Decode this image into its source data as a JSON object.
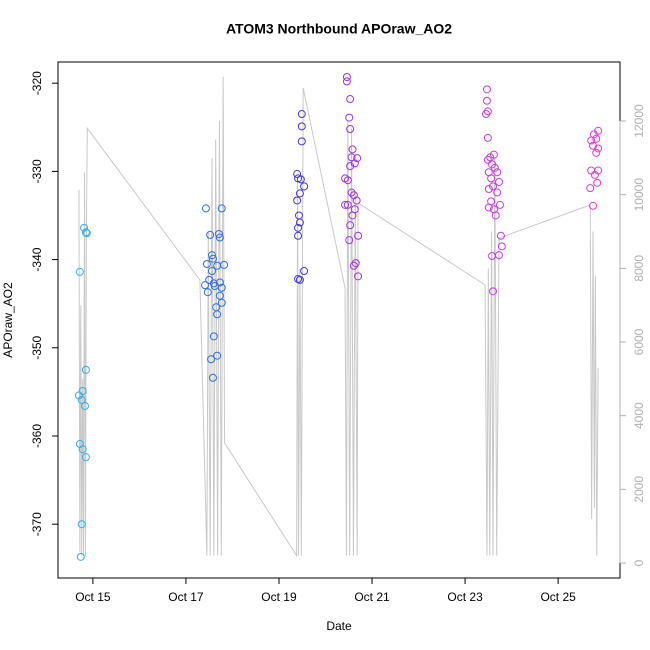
{
  "chart_data": {
    "type": "scatter",
    "title": "ATOM3 Northbound APOraw_AO2",
    "x_label": "Date",
    "y_label": "APOraw_AO2",
    "xlim": [
      14.25,
      26.33
    ],
    "xticks": [
      {
        "value": 15,
        "label": "Oct 15"
      },
      {
        "value": 17,
        "label": "Oct 17"
      },
      {
        "value": 19,
        "label": "Oct 19"
      },
      {
        "value": 21,
        "label": "Oct 21"
      },
      {
        "value": 23,
        "label": "Oct 23"
      },
      {
        "value": 25,
        "label": "Oct 25"
      }
    ],
    "ylim": [
      -376.1,
      -317.6
    ],
    "yticks": [
      -370,
      -360,
      -350,
      -340,
      -330,
      -320
    ],
    "y2lim": [
      -407,
      13602
    ],
    "y2ticks": [
      0,
      2000,
      4000,
      6000,
      8000,
      10000,
      12000
    ],
    "y2_color": "#b0b0b0",
    "series": [
      {
        "type": "scatter",
        "color": "#33aef0",
        "x": [
          14.72,
          14.81,
          14.85,
          14.87,
          14.7,
          14.78,
          14.76,
          14.83,
          14.85,
          14.72,
          14.78,
          14.85,
          14.76,
          14.74
        ],
        "values": [
          -341.4,
          -336.4,
          -336.9,
          -337.0,
          -355.4,
          -354.9,
          -355.9,
          -356.6,
          -352.5,
          -360.9,
          -361.5,
          -362.4,
          -370.0,
          -373.7
        ]
      },
      {
        "type": "scatter",
        "color": "#2f6fe6",
        "x": [
          17.43,
          17.77,
          17.52,
          17.71,
          17.73,
          17.56,
          17.58,
          17.45,
          17.82,
          17.67,
          17.56,
          17.5,
          17.6,
          17.73,
          17.41,
          17.62,
          17.77,
          17.47,
          17.73,
          17.77,
          17.65,
          17.67,
          17.6,
          17.67,
          17.54,
          17.58
        ],
        "values": [
          -334.2,
          -334.2,
          -337.2,
          -337.1,
          -337.5,
          -339.5,
          -339.9,
          -340.5,
          -340.6,
          -340.7,
          -341.3,
          -342.3,
          -342.7,
          -342.6,
          -342.9,
          -343.0,
          -343.2,
          -343.7,
          -344.1,
          -344.9,
          -345.4,
          -346.2,
          -348.7,
          -350.9,
          -351.3,
          -353.4
        ]
      },
      {
        "type": "scatter",
        "color": "#4a36e0",
        "x": [
          19.49,
          19.49,
          19.49,
          19.39,
          19.41,
          19.47,
          19.54,
          19.45,
          19.39,
          19.43,
          19.45,
          19.41,
          19.41,
          19.54,
          19.45,
          19.41
        ],
        "values": [
          -323.5,
          -324.9,
          -326.6,
          -330.3,
          -330.8,
          -330.9,
          -331.7,
          -332.5,
          -333.3,
          -335.0,
          -335.8,
          -336.4,
          -337.3,
          -341.3,
          -342.3,
          -342.2
        ]
      },
      {
        "type": "scatter",
        "color": "#a032e8",
        "x": [
          20.46,
          20.46,
          20.53,
          20.51,
          20.53,
          20.58,
          20.56,
          20.68,
          20.63,
          20.53,
          20.42,
          20.48,
          20.56,
          20.61,
          20.67,
          20.42,
          20.48,
          20.63,
          20.58,
          20.53,
          20.7,
          20.51,
          20.65,
          20.61,
          20.7
        ],
        "values": [
          -319.3,
          -319.8,
          -321.8,
          -323.9,
          -325.2,
          -327.5,
          -328.4,
          -328.5,
          -329.1,
          -329.4,
          -330.8,
          -331.0,
          -332.4,
          -332.7,
          -333.3,
          -333.8,
          -333.8,
          -334.3,
          -335.0,
          -336.1,
          -337.3,
          -337.8,
          -340.4,
          -340.7,
          -341.9
        ]
      },
      {
        "type": "scatter",
        "color": "#c83ce8",
        "x": [
          23.47,
          23.47,
          23.49,
          23.45,
          23.49,
          23.54,
          23.62,
          23.49,
          23.58,
          23.64,
          23.51,
          23.69,
          23.56,
          23.73,
          23.6,
          23.51,
          23.69,
          23.56,
          23.75,
          23.62,
          23.66,
          23.51,
          23.77,
          23.79,
          23.58,
          23.73,
          23.6
        ],
        "values": [
          -320.7,
          -322.0,
          -323.2,
          -323.5,
          -326.2,
          -328.4,
          -328.1,
          -328.7,
          -329.2,
          -329.6,
          -330.1,
          -330.1,
          -330.8,
          -331.2,
          -331.7,
          -332.0,
          -332.4,
          -333.4,
          -333.8,
          -334.3,
          -335.0,
          -334.1,
          -337.3,
          -338.5,
          -339.6,
          -339.5,
          -343.6
        ]
      },
      {
        "type": "scatter",
        "color": "#e03cd8",
        "x": [
          25.86,
          25.77,
          25.71,
          25.82,
          25.75,
          25.86,
          25.82,
          25.71,
          25.86,
          25.79,
          25.84,
          25.69,
          25.75
        ],
        "values": [
          -325.4,
          -325.8,
          -326.5,
          -326.3,
          -327.1,
          -327.4,
          -327.9,
          -329.9,
          -329.9,
          -330.4,
          -331.3,
          -331.9,
          -333.9
        ]
      },
      {
        "type": "line",
        "axis": "y2",
        "color": "#c8c8c8",
        "x": [
          14.7,
          14.72,
          14.74,
          14.76,
          14.78,
          14.8,
          14.82,
          14.84,
          14.86,
          14.88,
          17.3,
          17.45,
          17.48,
          17.52,
          17.56,
          17.6,
          17.64,
          17.68,
          17.72,
          17.76,
          17.8,
          17.83,
          19.38,
          19.4,
          19.42,
          19.45,
          19.48,
          19.52,
          20.42,
          20.45,
          20.48,
          20.52,
          20.56,
          20.6,
          20.64,
          20.68,
          20.7,
          23.43,
          23.47,
          23.5,
          23.53,
          23.57,
          23.6,
          23.64,
          23.68,
          23.73,
          25.69,
          25.72,
          25.75,
          25.78,
          25.8,
          25.83,
          25.86
        ],
        "values": [
          10126,
          300,
          7000,
          200,
          5000,
          200,
          10600,
          200,
          9000,
          11800,
          7684,
          200,
          9000,
          200,
          11000,
          200,
          11500,
          200,
          12000,
          200,
          13200,
          3260,
          200,
          10500,
          200,
          8000,
          200,
          12897,
          7467,
          200,
          12000,
          200,
          11800,
          200,
          10000,
          200,
          9775,
          7548,
          200,
          8000,
          200,
          9000,
          200,
          11000,
          200,
          8824,
          9720,
          1200,
          9000,
          1500,
          7800,
          200,
          5300
        ]
      }
    ]
  }
}
